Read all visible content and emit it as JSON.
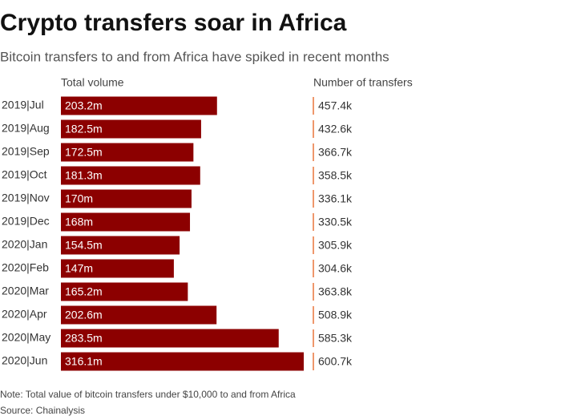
{
  "chart_data": {
    "type": "bar",
    "title": "Crypto transfers soar in Africa",
    "subtitle": "Bitcoin transfers to and from Africa have spiked in recent months",
    "categories": [
      "2019|Jul",
      "2019|Aug",
      "2019|Sep",
      "2019|Oct",
      "2019|Nov",
      "2019|Dec",
      "2020|Jan",
      "2020|Feb",
      "2020|Mar",
      "2020|Apr",
      "2020|May",
      "2020|Jun"
    ],
    "series": [
      {
        "name": "Total volume",
        "color": "#8c0000",
        "values": [
          203.2,
          182.5,
          172.5,
          181.3,
          170,
          168,
          154.5,
          147,
          165.2,
          202.6,
          283.5,
          316.1
        ],
        "value_labels": [
          "203.2m",
          "182.5m",
          "172.5m",
          "181.3m",
          "170m",
          "168m",
          "154.5m",
          "147m",
          "165.2m",
          "202.6m",
          "283.5m",
          "316.1m"
        ]
      },
      {
        "name": "Number of transfers",
        "color": "#e8743b",
        "values": [
          457.4,
          432.6,
          366.7,
          358.5,
          336.1,
          330.5,
          305.9,
          304.6,
          363.8,
          508.9,
          585.3,
          600.7
        ],
        "value_labels": [
          "457.4k",
          "432.6k",
          "366.7k",
          "358.5k",
          "336.1k",
          "330.5k",
          "305.9k",
          "304.6k",
          "363.8k",
          "508.9k",
          "585.3k",
          "600.7k"
        ]
      }
    ],
    "note": "Note: Total value of bitcoin transfers under $10,000 to and from Africa",
    "source": "Source: Chainalysis"
  }
}
